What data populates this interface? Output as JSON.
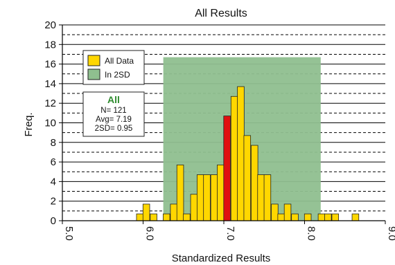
{
  "chart_data": {
    "type": "bar",
    "title": "All Results",
    "xlabel": "Standardized Results",
    "ylabel": "Freq.",
    "xlim": [
      5.0,
      9.0
    ],
    "ylim": [
      0,
      20
    ],
    "x_ticks": [
      {
        "value": 5.0,
        "label": "5.0"
      },
      {
        "value": 6.0,
        "label": "6.0"
      },
      {
        "value": 7.0,
        "label": "7.0"
      },
      {
        "value": 8.0,
        "label": "8.0"
      },
      {
        "value": 9.0,
        "label": "9.0"
      }
    ],
    "x_tick_label_rotation_deg": 90,
    "y_ticks": [
      0,
      2,
      4,
      6,
      8,
      10,
      12,
      14,
      16,
      18,
      20
    ],
    "grid": "dashed horizontal every 1 unit, solid at even values",
    "bin_width": 0.0833,
    "shaded_band": {
      "label": "In 2SD",
      "x_range": [
        6.25,
        8.2
      ],
      "y_top": 16.7,
      "color": "#8fbf8f"
    },
    "bars": [
      {
        "x": 5.96,
        "y": 0.7,
        "color": "#ffd700"
      },
      {
        "x": 6.04,
        "y": 1.7,
        "color": "#ffd700"
      },
      {
        "x": 6.13,
        "y": 0.7,
        "color": "#ffd700"
      },
      {
        "x": 6.29,
        "y": 0.7,
        "color": "#ffd700"
      },
      {
        "x": 6.38,
        "y": 1.7,
        "color": "#ffd700"
      },
      {
        "x": 6.46,
        "y": 5.7,
        "color": "#ffd700"
      },
      {
        "x": 6.54,
        "y": 0.7,
        "color": "#ffd700"
      },
      {
        "x": 6.63,
        "y": 2.7,
        "color": "#ffd700"
      },
      {
        "x": 6.71,
        "y": 4.7,
        "color": "#ffd700"
      },
      {
        "x": 6.79,
        "y": 4.7,
        "color": "#ffd700"
      },
      {
        "x": 6.88,
        "y": 4.7,
        "color": "#ffd700"
      },
      {
        "x": 6.96,
        "y": 5.7,
        "color": "#ffd700"
      },
      {
        "x": 7.04,
        "y": 10.7,
        "color": "#e01010"
      },
      {
        "x": 7.13,
        "y": 12.7,
        "color": "#ffd700"
      },
      {
        "x": 7.21,
        "y": 13.7,
        "color": "#ffd700"
      },
      {
        "x": 7.29,
        "y": 8.7,
        "color": "#ffd700"
      },
      {
        "x": 7.38,
        "y": 7.7,
        "color": "#ffd700"
      },
      {
        "x": 7.46,
        "y": 4.7,
        "color": "#ffd700"
      },
      {
        "x": 7.54,
        "y": 4.7,
        "color": "#ffd700"
      },
      {
        "x": 7.63,
        "y": 1.7,
        "color": "#ffd700"
      },
      {
        "x": 7.71,
        "y": 0.7,
        "color": "#ffd700"
      },
      {
        "x": 7.79,
        "y": 1.7,
        "color": "#ffd700"
      },
      {
        "x": 7.88,
        "y": 0.7,
        "color": "#ffd700"
      },
      {
        "x": 8.04,
        "y": 0.7,
        "color": "#ffd700"
      },
      {
        "x": 8.21,
        "y": 0.7,
        "color": "#ffd700"
      },
      {
        "x": 8.29,
        "y": 0.7,
        "color": "#ffd700"
      },
      {
        "x": 8.38,
        "y": 0.7,
        "color": "#ffd700"
      },
      {
        "x": 8.63,
        "y": 0.7,
        "color": "#ffd700"
      }
    ],
    "legend": {
      "placement": "top-left",
      "entries": [
        {
          "label": "All Data",
          "color": "#ffd700"
        },
        {
          "label": "In 2SD",
          "color": "#8fbf8f"
        }
      ]
    },
    "stats_box": {
      "heading": "All",
      "lines": [
        "N= 121",
        "Avg= 7.19",
        "2SD= 0.95"
      ]
    }
  }
}
